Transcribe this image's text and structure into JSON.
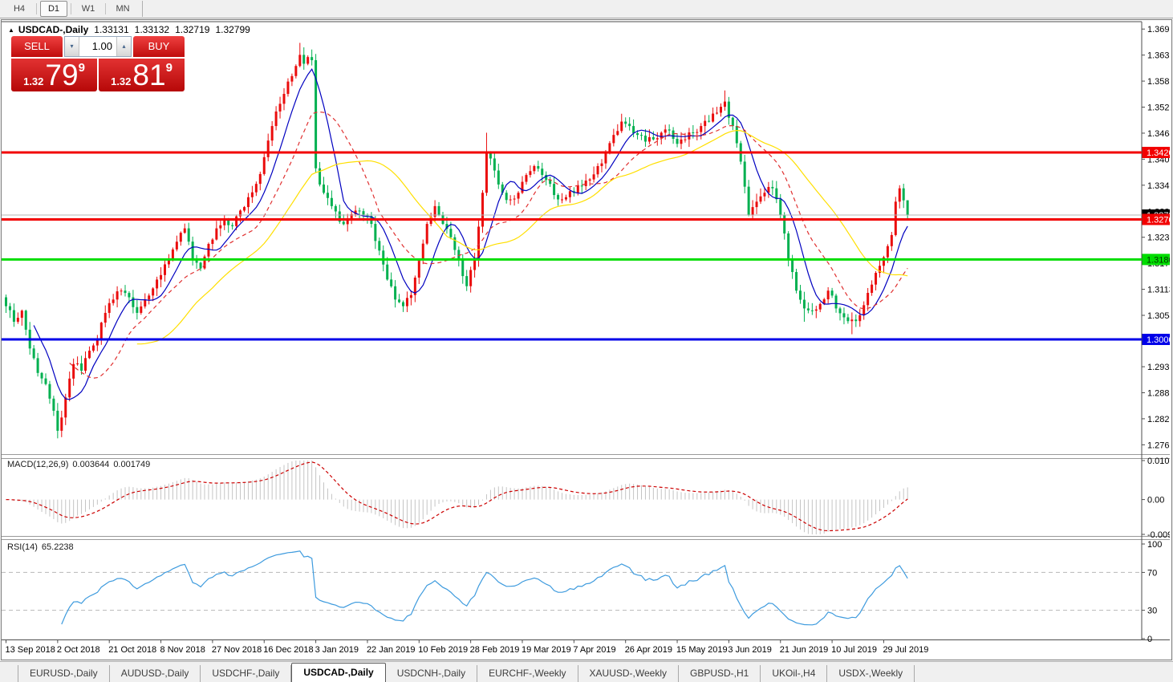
{
  "toolbar": {
    "timeframes": [
      "H4",
      "D1",
      "W1",
      "MN"
    ],
    "active": "D1"
  },
  "header": {
    "collapse_icon": "▲",
    "title": "USDCAD-,Daily",
    "open": "1.33131",
    "high": "1.33132",
    "low": "1.32719",
    "close": "1.32799"
  },
  "trade_panel": {
    "sell_label": "SELL",
    "buy_label": "BUY",
    "volume": "1.00",
    "down_arrow": "▾",
    "up_arrow": "▴",
    "sell_price": {
      "handle": "1.32",
      "big": "79",
      "pip": "9"
    },
    "buy_price": {
      "handle": "1.32",
      "big": "81",
      "pip": "9"
    }
  },
  "bottom_tabs": {
    "items": [
      "EURUSD-,Daily",
      "AUDUSD-,Daily",
      "USDCHF-,Daily",
      "USDCAD-,Daily",
      "USDCNH-,Daily",
      "EURCHF-,Weekly",
      "XAUUSD-,Weekly",
      "GBPUSD-,H1",
      "UKOil-,H4",
      "USDX-,Weekly"
    ],
    "active": "USDCAD-,Daily"
  },
  "chart_data": {
    "type": "candlestick",
    "symbol": "USDCAD-,Daily",
    "bars": 228,
    "bar_spacing": 4.95,
    "price_range": [
      1.27425,
      1.37092
    ],
    "price_axis": {
      "ticks": [
        "1.36980",
        "1.36395",
        "1.35810",
        "1.35225",
        "1.34640",
        "1.34055",
        "1.33470",
        "1.32885",
        "1.32300",
        "1.31715",
        "1.31130",
        "1.30545",
        "1.29390",
        "1.28805",
        "1.28220",
        "1.27635"
      ]
    },
    "x_labels": [
      "13 Sep 2018",
      "2 Oct 2018",
      "21 Oct 2018",
      "8 Nov 2018",
      "27 Nov 2018",
      "16 Dec 2018",
      "3 Jan 2019",
      "22 Jan 2019",
      "10 Feb 2019",
      "28 Feb 2019",
      "19 Mar 2019",
      "7 Apr 2019",
      "26 Apr 2019",
      "15 May 2019",
      "3 Jun 2019",
      "21 Jun 2019",
      "10 Jul 2019",
      "29 Jul 2019"
    ],
    "x_label_every": 13,
    "levels": [
      {
        "price": 1.34206,
        "label": "1.34206",
        "color": "#f20000",
        "width": 3,
        "label_bg": "#f20000",
        "label_fg": "#ffffff"
      },
      {
        "price": 1.32701,
        "label": "1.32701",
        "color": "#f20000",
        "width": 3,
        "label_bg": "#f20000",
        "label_fg": "#ffffff"
      },
      {
        "price": 1.31801,
        "label": "1.31801",
        "color": "#00dd00",
        "width": 3,
        "label_bg": "#00dd00",
        "label_fg": "#003300"
      },
      {
        "price": 1.30004,
        "label": "1.30004",
        "color": "#0000e8",
        "width": 3,
        "label_bg": "#0000e8",
        "label_fg": "#ffffff"
      }
    ],
    "bid_line": {
      "price": 1.32799,
      "label": "1.32799",
      "color": "#b4b4b4",
      "label_bg": "#000000",
      "label_fg": "#ffffff"
    },
    "candles": {
      "bull_color": "#ea0c0c",
      "bear_color": "#00b050",
      "seed": 12345,
      "noise": 0.0009,
      "wick": 0.0016,
      "close_anchors": [
        [
          0,
          1.3075
        ],
        [
          2,
          1.304
        ],
        [
          4,
          1.3065
        ],
        [
          6,
          1.298
        ],
        [
          8,
          1.2925
        ],
        [
          10,
          1.29
        ],
        [
          12,
          1.284
        ],
        [
          13,
          1.2795
        ],
        [
          15,
          1.287
        ],
        [
          17,
          1.2945
        ],
        [
          19,
          1.293
        ],
        [
          21,
          1.2975
        ],
        [
          23,
          1.3
        ],
        [
          25,
          1.306
        ],
        [
          27,
          1.309
        ],
        [
          29,
          1.311
        ],
        [
          31,
          1.3095
        ],
        [
          33,
          1.306
        ],
        [
          35,
          1.309
        ],
        [
          37,
          1.3115
        ],
        [
          39,
          1.3145
        ],
        [
          41,
          1.318
        ],
        [
          43,
          1.322
        ],
        [
          45,
          1.325
        ],
        [
          47,
          1.318
        ],
        [
          49,
          1.316
        ],
        [
          51,
          1.3215
        ],
        [
          53,
          1.325
        ],
        [
          55,
          1.327
        ],
        [
          57,
          1.3255
        ],
        [
          59,
          1.329
        ],
        [
          61,
          1.332
        ],
        [
          63,
          1.335
        ],
        [
          65,
          1.341
        ],
        [
          67,
          1.348
        ],
        [
          69,
          1.353
        ],
        [
          71,
          1.358
        ],
        [
          73,
          1.3615
        ],
        [
          74,
          1.364
        ],
        [
          75,
          1.362
        ],
        [
          76,
          1.3635
        ],
        [
          77,
          1.3628
        ],
        [
          78,
          1.3385
        ],
        [
          80,
          1.333
        ],
        [
          82,
          1.33
        ],
        [
          84,
          1.3265
        ],
        [
          86,
          1.327
        ],
        [
          88,
          1.329
        ],
        [
          90,
          1.328
        ],
        [
          92,
          1.326
        ],
        [
          94,
          1.32
        ],
        [
          96,
          1.3135
        ],
        [
          98,
          1.309
        ],
        [
          100,
          1.3075
        ],
        [
          102,
          1.31
        ],
        [
          104,
          1.318
        ],
        [
          106,
          1.326
        ],
        [
          108,
          1.33
        ],
        [
          110,
          1.326
        ],
        [
          112,
          1.323
        ],
        [
          114,
          1.318
        ],
        [
          116,
          1.312
        ],
        [
          118,
          1.318
        ],
        [
          120,
          1.333
        ],
        [
          121,
          1.342
        ],
        [
          123,
          1.338
        ],
        [
          125,
          1.333
        ],
        [
          127,
          1.3315
        ],
        [
          129,
          1.333
        ],
        [
          131,
          1.337
        ],
        [
          133,
          1.339
        ],
        [
          135,
          1.337
        ],
        [
          137,
          1.335
        ],
        [
          139,
          1.3315
        ],
        [
          141,
          1.332
        ],
        [
          143,
          1.333
        ],
        [
          145,
          1.3345
        ],
        [
          147,
          1.336
        ],
        [
          149,
          1.339
        ],
        [
          151,
          1.342
        ],
        [
          153,
          1.346
        ],
        [
          155,
          1.349
        ],
        [
          157,
          1.348
        ],
        [
          159,
          1.346
        ],
        [
          161,
          1.3445
        ],
        [
          163,
          1.345
        ],
        [
          165,
          1.3465
        ],
        [
          167,
          1.347
        ],
        [
          169,
          1.344
        ],
        [
          171,
          1.345
        ],
        [
          173,
          1.3465
        ],
        [
          175,
          1.348
        ],
        [
          177,
          1.349
        ],
        [
          179,
          1.351
        ],
        [
          181,
          1.3535
        ],
        [
          183,
          1.348
        ],
        [
          185,
          1.34
        ],
        [
          187,
          1.328
        ],
        [
          189,
          1.331
        ],
        [
          191,
          1.333
        ],
        [
          193,
          1.334
        ],
        [
          195,
          1.328
        ],
        [
          197,
          1.318
        ],
        [
          199,
          1.311
        ],
        [
          201,
          1.307
        ],
        [
          203,
          1.3065
        ],
        [
          205,
          1.308
        ],
        [
          207,
          1.311
        ],
        [
          209,
          1.307
        ],
        [
          211,
          1.305
        ],
        [
          213,
          1.3045
        ],
        [
          215,
          1.3055
        ],
        [
          217,
          1.3105
        ],
        [
          219,
          1.315
        ],
        [
          221,
          1.3185
        ],
        [
          222,
          1.321
        ],
        [
          223,
          1.3235
        ],
        [
          224,
          1.331
        ],
        [
          225,
          1.334
        ],
        [
          226,
          1.3313
        ],
        [
          227,
          1.328
        ]
      ],
      "high_overrides": [
        [
          74,
          1.3667
        ],
        [
          121,
          1.3465
        ],
        [
          181,
          1.356
        ],
        [
          225,
          1.3347
        ]
      ],
      "low_overrides": [
        [
          13,
          1.2778
        ],
        [
          100,
          1.3062
        ],
        [
          201,
          1.304
        ],
        [
          213,
          1.3012
        ]
      ],
      "last_bar": {
        "o": 1.33131,
        "h": 1.33132,
        "l": 1.32719,
        "c": 1.32799
      }
    },
    "moving_averages": [
      {
        "period": 8,
        "color": "#0000c0",
        "dash": ""
      },
      {
        "period": 17,
        "color": "#e03030",
        "dash": "5,4"
      },
      {
        "period": 34,
        "color": "#ffdf00",
        "dash": ""
      }
    ],
    "macd": {
      "label": "MACD(12,26,9)",
      "value_main": "0.003644",
      "value_signal": "0.001749",
      "fast": 12,
      "slow": 26,
      "signal": 9,
      "max": 0.010311,
      "min": -0.009203,
      "axis": [
        {
          "v": 0.010311,
          "label": "0.010311"
        },
        {
          "v": 0,
          "label": "0.00"
        },
        {
          "v": -0.009203,
          "label": "-0.009203"
        }
      ],
      "hist_color": "#c4c4c4",
      "signal_color": "#cc0000"
    },
    "rsi": {
      "label": "RSI(14)",
      "value": "65.2238",
      "period": 14,
      "axis": [
        {
          "v": 100,
          "label": "100"
        },
        {
          "v": 70,
          "label": "70"
        },
        {
          "v": 30,
          "label": "30"
        },
        {
          "v": 0,
          "label": "0"
        }
      ],
      "levels": [
        70,
        30
      ],
      "level_color": "#b8b8b8",
      "color": "#3e9bde"
    }
  }
}
